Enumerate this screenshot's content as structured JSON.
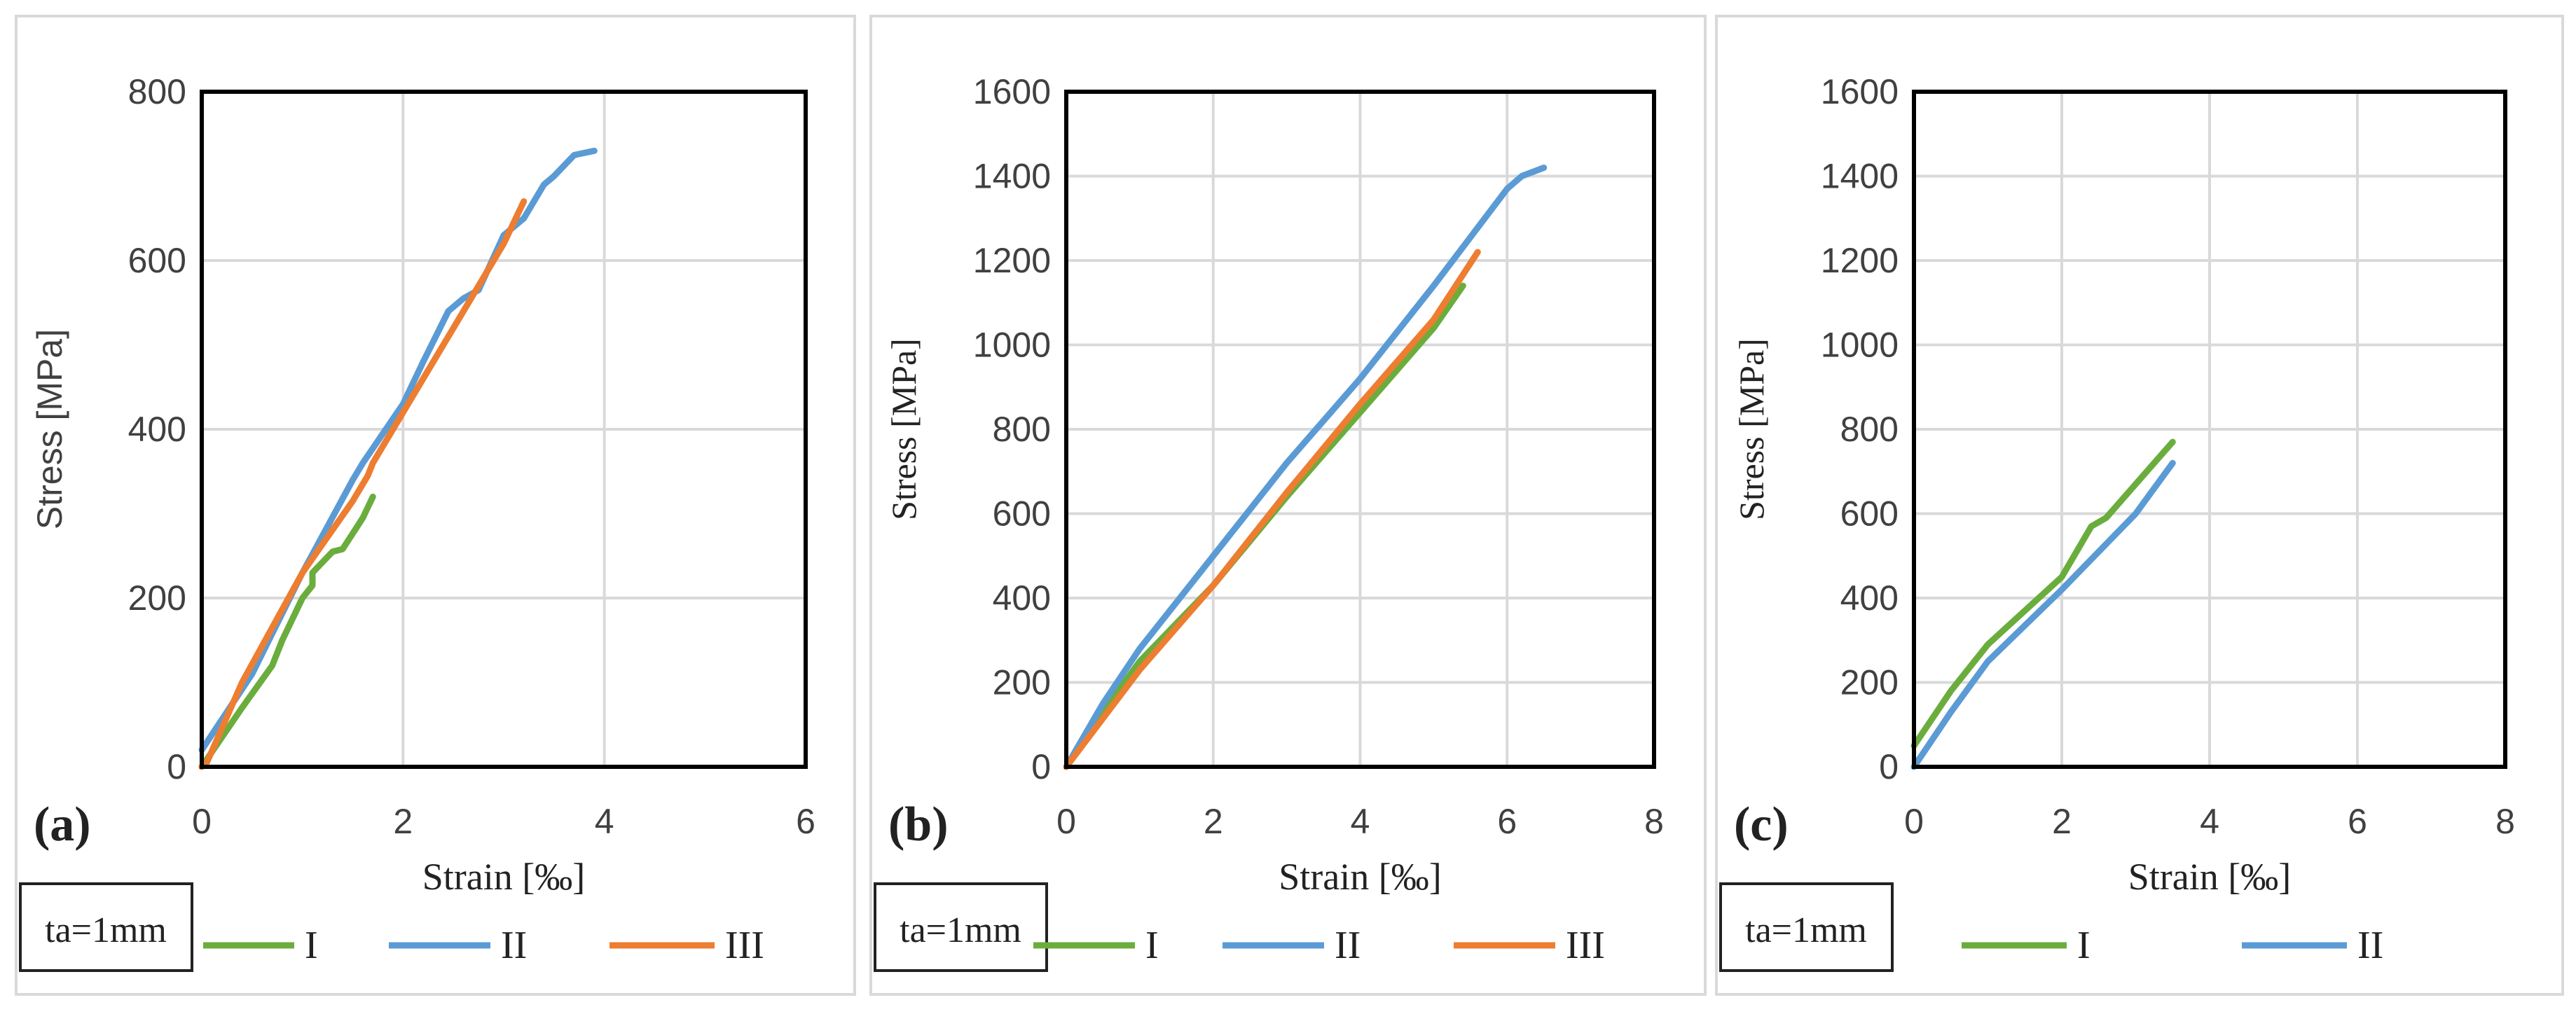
{
  "colors": {
    "I": "#6aad3d",
    "II": "#5b9bd5",
    "III": "#ed7d31",
    "grid": "#d9d9d9"
  },
  "chart_data": [
    {
      "type": "line",
      "panel_label": "(a)",
      "xlabel": "Strain [‰]",
      "ylabel": "Stress [MPa]",
      "xlim": [
        0,
        6
      ],
      "ylim": [
        0,
        800
      ],
      "xticks": [
        0,
        2,
        4,
        6
      ],
      "yticks": [
        0,
        200,
        400,
        600,
        800
      ],
      "grid": true,
      "legend_title": "ta=1mm",
      "legend_placement": "bottom",
      "series": [
        {
          "name": "I",
          "points": [
            [
              0,
              0
            ],
            [
              0.4,
              70
            ],
            [
              0.7,
              120
            ],
            [
              0.8,
              150
            ],
            [
              1.0,
              200
            ],
            [
              1.1,
              215
            ],
            [
              1.1,
              230
            ],
            [
              1.3,
              255
            ],
            [
              1.4,
              258
            ],
            [
              1.6,
              295
            ],
            [
              1.7,
              320
            ]
          ]
        },
        {
          "name": "II",
          "points": [
            [
              0,
              20
            ],
            [
              0.5,
              110
            ],
            [
              1.0,
              230
            ],
            [
              1.5,
              340
            ],
            [
              1.6,
              360
            ],
            [
              2.0,
              430
            ],
            [
              2.2,
              480
            ],
            [
              2.45,
              540
            ],
            [
              2.6,
              555
            ],
            [
              2.75,
              565
            ],
            [
              3.0,
              630
            ],
            [
              3.2,
              650
            ],
            [
              3.4,
              690
            ],
            [
              3.5,
              700
            ],
            [
              3.7,
              725
            ],
            [
              3.9,
              730
            ]
          ]
        },
        {
          "name": "III",
          "points": [
            [
              0,
              0
            ],
            [
              0.05,
              5
            ],
            [
              0.4,
              100
            ],
            [
              1.0,
              230
            ],
            [
              1.5,
              315
            ],
            [
              1.65,
              345
            ],
            [
              1.7,
              360
            ],
            [
              2.0,
              420
            ],
            [
              2.5,
              520
            ],
            [
              3.0,
              620
            ],
            [
              3.2,
              670
            ]
          ]
        }
      ]
    },
    {
      "type": "line",
      "panel_label": "(b)",
      "xlabel": "Strain [‰]",
      "ylabel": "Stress [MPa]",
      "xlim": [
        0,
        8
      ],
      "ylim": [
        0,
        1600
      ],
      "xticks": [
        0,
        2,
        4,
        6,
        8
      ],
      "yticks": [
        0,
        200,
        400,
        600,
        800,
        1000,
        1200,
        1400,
        1600
      ],
      "grid": true,
      "legend_title": "ta=1mm",
      "legend_placement": "bottom",
      "series": [
        {
          "name": "I",
          "points": [
            [
              0,
              0
            ],
            [
              0.5,
              130
            ],
            [
              1,
              250
            ],
            [
              2,
              430
            ],
            [
              3,
              640
            ],
            [
              4,
              840
            ],
            [
              5,
              1040
            ],
            [
              5.4,
              1140
            ]
          ]
        },
        {
          "name": "II",
          "points": [
            [
              0,
              0
            ],
            [
              0.5,
              150
            ],
            [
              1,
              280
            ],
            [
              2,
              500
            ],
            [
              3,
              720
            ],
            [
              4,
              920
            ],
            [
              5,
              1140
            ],
            [
              6,
              1370
            ],
            [
              6.2,
              1400
            ],
            [
              6.5,
              1420
            ]
          ]
        },
        {
          "name": "III",
          "points": [
            [
              0,
              0
            ],
            [
              1,
              230
            ],
            [
              2,
              430
            ],
            [
              3,
              650
            ],
            [
              4,
              860
            ],
            [
              5,
              1060
            ],
            [
              5.6,
              1220
            ]
          ]
        }
      ]
    },
    {
      "type": "line",
      "panel_label": "(c)",
      "xlabel": "Strain [‰]",
      "ylabel": "Stress [MPa]",
      "xlim": [
        0,
        8
      ],
      "ylim": [
        0,
        1600
      ],
      "xticks": [
        0,
        2,
        4,
        6,
        8
      ],
      "yticks": [
        0,
        200,
        400,
        600,
        800,
        1000,
        1200,
        1400,
        1600
      ],
      "grid": true,
      "legend_title": "ta=1mm",
      "legend_placement": "bottom",
      "series": [
        {
          "name": "I",
          "points": [
            [
              0,
              50
            ],
            [
              0.5,
              180
            ],
            [
              1,
              290
            ],
            [
              2,
              450
            ],
            [
              2.4,
              570
            ],
            [
              2.6,
              590
            ],
            [
              3,
              670
            ],
            [
              3.5,
              770
            ]
          ]
        },
        {
          "name": "II",
          "points": [
            [
              0,
              0
            ],
            [
              0.5,
              130
            ],
            [
              1,
              250
            ],
            [
              2,
              420
            ],
            [
              3,
              600
            ],
            [
              3.5,
              720
            ]
          ]
        }
      ]
    }
  ]
}
